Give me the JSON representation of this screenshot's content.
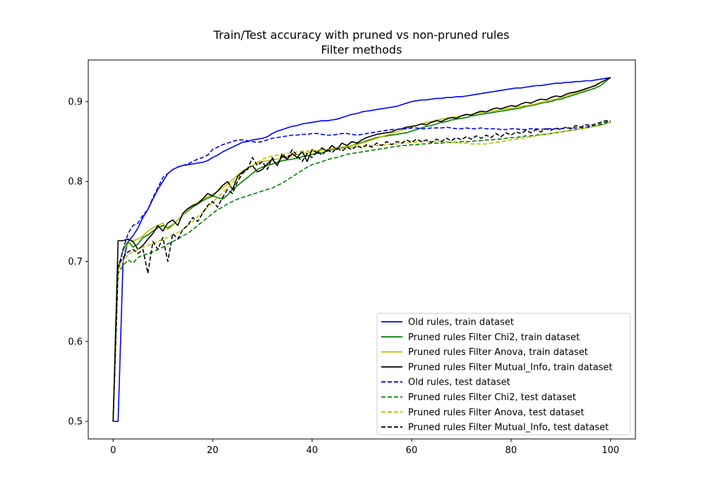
{
  "chart_data": {
    "type": "line",
    "title": "Train/Test accuracy with pruned vs non-pruned rules",
    "subtitle": "Filter methods",
    "xlabel": "",
    "ylabel": "",
    "xlim": [
      -5,
      105
    ],
    "ylim": [
      0.478,
      0.952
    ],
    "xticks": [
      0,
      20,
      40,
      60,
      80,
      100
    ],
    "yticks": [
      0.5,
      0.6,
      0.7,
      0.8,
      0.9
    ],
    "grid": false,
    "legend_position": "lower-right",
    "x": [
      0,
      1,
      2,
      3,
      4,
      5,
      6,
      7,
      8,
      9,
      10,
      11,
      12,
      13,
      14,
      15,
      16,
      17,
      18,
      19,
      20,
      21,
      22,
      23,
      24,
      25,
      26,
      27,
      28,
      29,
      30,
      31,
      32,
      33,
      34,
      35,
      36,
      37,
      38,
      39,
      40,
      41,
      42,
      43,
      44,
      45,
      46,
      47,
      48,
      49,
      50,
      51,
      52,
      53,
      54,
      55,
      56,
      57,
      58,
      59,
      60,
      61,
      62,
      63,
      64,
      65,
      66,
      67,
      68,
      69,
      70,
      71,
      72,
      73,
      74,
      75,
      76,
      77,
      78,
      79,
      80,
      81,
      82,
      83,
      84,
      85,
      86,
      87,
      88,
      89,
      90,
      91,
      92,
      93,
      94,
      95,
      96,
      97,
      98,
      99,
      100
    ],
    "series": [
      {
        "name": "Old rules, train dataset",
        "color": "#0000ff",
        "dash": false,
        "values": [
          0.5,
          0.5,
          0.7,
          0.725,
          0.732,
          0.742,
          0.755,
          0.765,
          0.778,
          0.79,
          0.8,
          0.81,
          0.815,
          0.818,
          0.82,
          0.821,
          0.822,
          0.823,
          0.824,
          0.826,
          0.83,
          0.833,
          0.837,
          0.84,
          0.843,
          0.846,
          0.849,
          0.85,
          0.852,
          0.853,
          0.854,
          0.856,
          0.86,
          0.863,
          0.865,
          0.867,
          0.869,
          0.87,
          0.872,
          0.873,
          0.874,
          0.875,
          0.876,
          0.876,
          0.877,
          0.878,
          0.88,
          0.882,
          0.884,
          0.885,
          0.887,
          0.888,
          0.889,
          0.89,
          0.891,
          0.892,
          0.893,
          0.894,
          0.896,
          0.898,
          0.9,
          0.901,
          0.902,
          0.902,
          0.903,
          0.904,
          0.904,
          0.905,
          0.905,
          0.906,
          0.906,
          0.907,
          0.908,
          0.909,
          0.91,
          0.911,
          0.912,
          0.913,
          0.914,
          0.915,
          0.916,
          0.917,
          0.917,
          0.918,
          0.919,
          0.92,
          0.92,
          0.921,
          0.922,
          0.923,
          0.923,
          0.924,
          0.924,
          0.925,
          0.925,
          0.926,
          0.926,
          0.927,
          0.928,
          0.929,
          0.93
        ]
      },
      {
        "name": "Pruned rules Filter Chi2, train dataset",
        "color": "#008000",
        "dash": false,
        "values": [
          0.5,
          0.69,
          0.715,
          0.725,
          0.718,
          0.722,
          0.73,
          0.733,
          0.738,
          0.742,
          0.745,
          0.742,
          0.746,
          0.752,
          0.758,
          0.763,
          0.768,
          0.772,
          0.776,
          0.779,
          0.782,
          0.78,
          0.778,
          0.783,
          0.79,
          0.795,
          0.8,
          0.805,
          0.81,
          0.815,
          0.818,
          0.82,
          0.822,
          0.824,
          0.826,
          0.827,
          0.828,
          0.829,
          0.831,
          0.832,
          0.834,
          0.835,
          0.836,
          0.838,
          0.84,
          0.841,
          0.842,
          0.843,
          0.845,
          0.847,
          0.849,
          0.851,
          0.853,
          0.855,
          0.856,
          0.857,
          0.858,
          0.859,
          0.86,
          0.861,
          0.863,
          0.865,
          0.867,
          0.869,
          0.87,
          0.872,
          0.874,
          0.875,
          0.877,
          0.878,
          0.879,
          0.88,
          0.882,
          0.883,
          0.884,
          0.885,
          0.886,
          0.887,
          0.888,
          0.889,
          0.89,
          0.891,
          0.892,
          0.894,
          0.895,
          0.896,
          0.898,
          0.899,
          0.9,
          0.902,
          0.903,
          0.905,
          0.907,
          0.909,
          0.911,
          0.913,
          0.915,
          0.917,
          0.92,
          0.925,
          0.93
        ]
      },
      {
        "name": "Pruned rules Filter Anova, train dataset",
        "color": "#bfbf00",
        "dash": false,
        "values": [
          0.5,
          0.695,
          0.712,
          0.722,
          0.726,
          0.728,
          0.732,
          0.738,
          0.742,
          0.745,
          0.748,
          0.74,
          0.745,
          0.752,
          0.758,
          0.764,
          0.77,
          0.774,
          0.778,
          0.781,
          0.784,
          0.788,
          0.792,
          0.797,
          0.802,
          0.808,
          0.813,
          0.817,
          0.82,
          0.823,
          0.825,
          0.826,
          0.827,
          0.828,
          0.83,
          0.831,
          0.832,
          0.834,
          0.835,
          0.836,
          0.837,
          0.838,
          0.839,
          0.84,
          0.841,
          0.842,
          0.843,
          0.844,
          0.845,
          0.846,
          0.848,
          0.85,
          0.852,
          0.854,
          0.856,
          0.858,
          0.86,
          0.862,
          0.864,
          0.866,
          0.868,
          0.87,
          0.872,
          0.874,
          0.875,
          0.877,
          0.878,
          0.879,
          0.88,
          0.881,
          0.882,
          0.883,
          0.884,
          0.885,
          0.886,
          0.887,
          0.888,
          0.889,
          0.89,
          0.891,
          0.892,
          0.893,
          0.894,
          0.895,
          0.896,
          0.897,
          0.899,
          0.9,
          0.902,
          0.903,
          0.905,
          0.907,
          0.909,
          0.911,
          0.913,
          0.915,
          0.918,
          0.921,
          0.924,
          0.927,
          0.93
        ]
      },
      {
        "name": "Pruned rules Filter Mutual_Info, train dataset",
        "color": "#000000",
        "dash": false,
        "values": [
          0.5,
          0.726,
          0.726,
          0.728,
          0.725,
          0.715,
          0.72,
          0.728,
          0.735,
          0.745,
          0.738,
          0.748,
          0.752,
          0.745,
          0.76,
          0.766,
          0.77,
          0.772,
          0.778,
          0.785,
          0.782,
          0.788,
          0.795,
          0.8,
          0.79,
          0.806,
          0.812,
          0.816,
          0.82,
          0.812,
          0.815,
          0.822,
          0.828,
          0.82,
          0.832,
          0.828,
          0.835,
          0.83,
          0.838,
          0.825,
          0.84,
          0.836,
          0.842,
          0.838,
          0.845,
          0.84,
          0.848,
          0.845,
          0.85,
          0.848,
          0.852,
          0.855,
          0.857,
          0.859,
          0.86,
          0.861,
          0.862,
          0.865,
          0.866,
          0.868,
          0.869,
          0.87,
          0.872,
          0.871,
          0.874,
          0.876,
          0.875,
          0.878,
          0.88,
          0.879,
          0.882,
          0.884,
          0.883,
          0.886,
          0.888,
          0.887,
          0.89,
          0.892,
          0.891,
          0.893,
          0.895,
          0.894,
          0.897,
          0.899,
          0.898,
          0.901,
          0.903,
          0.902,
          0.905,
          0.907,
          0.906,
          0.909,
          0.911,
          0.912,
          0.914,
          0.916,
          0.918,
          0.92,
          0.924,
          0.927,
          0.93
        ]
      },
      {
        "name": "Old rules, test dataset",
        "color": "#0000ff",
        "dash": true,
        "values": [
          0.5,
          0.69,
          0.715,
          0.735,
          0.745,
          0.748,
          0.758,
          0.765,
          0.78,
          0.792,
          0.805,
          0.81,
          0.815,
          0.818,
          0.82,
          0.822,
          0.825,
          0.828,
          0.83,
          0.833,
          0.84,
          0.843,
          0.846,
          0.848,
          0.85,
          0.852,
          0.852,
          0.851,
          0.85,
          0.849,
          0.85,
          0.852,
          0.854,
          0.855,
          0.856,
          0.857,
          0.858,
          0.858,
          0.859,
          0.859,
          0.86,
          0.86,
          0.859,
          0.858,
          0.858,
          0.859,
          0.86,
          0.86,
          0.859,
          0.858,
          0.859,
          0.86,
          0.861,
          0.862,
          0.863,
          0.864,
          0.865,
          0.865,
          0.866,
          0.866,
          0.867,
          0.867,
          0.866,
          0.866,
          0.867,
          0.867,
          0.867,
          0.868,
          0.867,
          0.866,
          0.866,
          0.867,
          0.866,
          0.866,
          0.867,
          0.866,
          0.866,
          0.866,
          0.865,
          0.865,
          0.866,
          0.866,
          0.865,
          0.865,
          0.866,
          0.866,
          0.865,
          0.866,
          0.866,
          0.866,
          0.866,
          0.867,
          0.867,
          0.867,
          0.868,
          0.868,
          0.869,
          0.87,
          0.871,
          0.873,
          0.875
        ]
      },
      {
        "name": "Pruned rules Filter Chi2, test dataset",
        "color": "#008000",
        "dash": true,
        "values": [
          0.5,
          0.685,
          0.695,
          0.702,
          0.698,
          0.705,
          0.708,
          0.71,
          0.712,
          0.715,
          0.718,
          0.722,
          0.725,
          0.728,
          0.732,
          0.735,
          0.74,
          0.745,
          0.75,
          0.755,
          0.76,
          0.765,
          0.768,
          0.772,
          0.775,
          0.778,
          0.78,
          0.782,
          0.784,
          0.786,
          0.788,
          0.79,
          0.792,
          0.795,
          0.798,
          0.802,
          0.806,
          0.81,
          0.814,
          0.818,
          0.821,
          0.823,
          0.825,
          0.827,
          0.829,
          0.83,
          0.832,
          0.834,
          0.835,
          0.836,
          0.837,
          0.838,
          0.839,
          0.84,
          0.841,
          0.842,
          0.843,
          0.844,
          0.845,
          0.845,
          0.846,
          0.846,
          0.847,
          0.847,
          0.848,
          0.848,
          0.848,
          0.849,
          0.849,
          0.849,
          0.85,
          0.85,
          0.85,
          0.851,
          0.851,
          0.852,
          0.852,
          0.853,
          0.853,
          0.854,
          0.855,
          0.855,
          0.856,
          0.857,
          0.857,
          0.858,
          0.859,
          0.859,
          0.86,
          0.861,
          0.862,
          0.863,
          0.864,
          0.865,
          0.866,
          0.867,
          0.868,
          0.87,
          0.872,
          0.874,
          0.876
        ]
      },
      {
        "name": "Pruned rules Filter Anova, test dataset",
        "color": "#bfbf00",
        "dash": true,
        "values": [
          0.5,
          0.69,
          0.7,
          0.708,
          0.712,
          0.715,
          0.718,
          0.72,
          0.722,
          0.725,
          0.728,
          0.73,
          0.733,
          0.736,
          0.74,
          0.745,
          0.75,
          0.756,
          0.762,
          0.768,
          0.774,
          0.78,
          0.786,
          0.792,
          0.798,
          0.804,
          0.81,
          0.815,
          0.82,
          0.824,
          0.828,
          0.83,
          0.832,
          0.833,
          0.834,
          0.835,
          0.836,
          0.837,
          0.838,
          0.838,
          0.839,
          0.839,
          0.84,
          0.84,
          0.841,
          0.841,
          0.842,
          0.842,
          0.843,
          0.843,
          0.844,
          0.844,
          0.845,
          0.845,
          0.846,
          0.846,
          0.847,
          0.847,
          0.848,
          0.848,
          0.849,
          0.849,
          0.85,
          0.85,
          0.85,
          0.85,
          0.85,
          0.85,
          0.849,
          0.849,
          0.848,
          0.848,
          0.847,
          0.847,
          0.847,
          0.847,
          0.848,
          0.849,
          0.85,
          0.851,
          0.852,
          0.853,
          0.854,
          0.855,
          0.856,
          0.857,
          0.858,
          0.859,
          0.86,
          0.861,
          0.862,
          0.863,
          0.864,
          0.865,
          0.866,
          0.867,
          0.868,
          0.869,
          0.87,
          0.872,
          0.874
        ]
      },
      {
        "name": "Pruned rules Filter Mutual_Info, test dataset",
        "color": "#000000",
        "dash": true,
        "values": [
          0.5,
          0.695,
          0.705,
          0.712,
          0.715,
          0.71,
          0.715,
          0.685,
          0.725,
          0.715,
          0.73,
          0.7,
          0.735,
          0.728,
          0.74,
          0.745,
          0.755,
          0.75,
          0.76,
          0.77,
          0.775,
          0.768,
          0.78,
          0.79,
          0.785,
          0.8,
          0.81,
          0.815,
          0.83,
          0.82,
          0.825,
          0.815,
          0.83,
          0.82,
          0.835,
          0.828,
          0.84,
          0.832,
          0.825,
          0.835,
          0.83,
          0.838,
          0.833,
          0.84,
          0.836,
          0.842,
          0.838,
          0.843,
          0.84,
          0.845,
          0.842,
          0.846,
          0.843,
          0.848,
          0.845,
          0.85,
          0.846,
          0.85,
          0.848,
          0.852,
          0.849,
          0.853,
          0.85,
          0.852,
          0.849,
          0.853,
          0.85,
          0.854,
          0.851,
          0.855,
          0.852,
          0.856,
          0.853,
          0.857,
          0.854,
          0.858,
          0.855,
          0.86,
          0.856,
          0.861,
          0.858,
          0.862,
          0.86,
          0.864,
          0.861,
          0.865,
          0.862,
          0.866,
          0.864,
          0.867,
          0.865,
          0.868,
          0.866,
          0.87,
          0.868,
          0.871,
          0.87,
          0.872,
          0.874,
          0.876,
          0.875
        ]
      }
    ]
  }
}
